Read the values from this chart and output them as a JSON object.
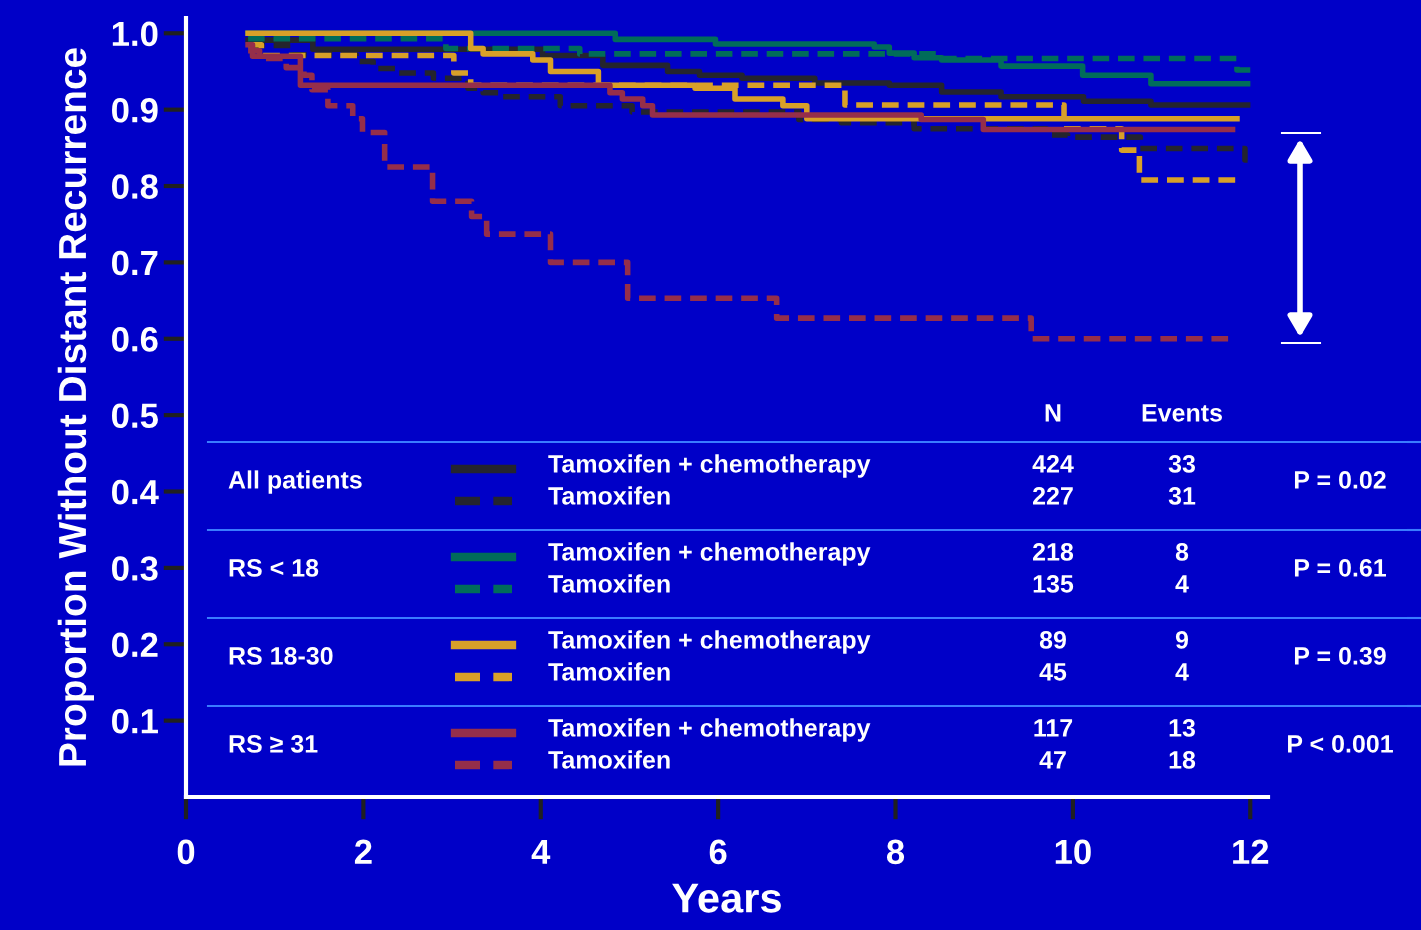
{
  "chart_data": {
    "type": "step",
    "xlabel": "Years",
    "ylabel": "Proportion Without Distant Recurrence",
    "xlim": [
      0,
      12.2
    ],
    "ylim": [
      0,
      1.02
    ],
    "xticks": [
      0,
      2,
      4,
      6,
      8,
      10,
      12
    ],
    "yticks": [
      {
        "value": 0.1,
        "label": "0.1"
      },
      {
        "value": 0.2,
        "label": "0.2"
      },
      {
        "value": 0.3,
        "label": "0.3"
      },
      {
        "value": 0.4,
        "label": "0.4"
      },
      {
        "value": 0.5,
        "label": "0.5"
      },
      {
        "value": 0.6,
        "label": "0.6"
      },
      {
        "value": 0.7,
        "label": "0.7"
      },
      {
        "value": 0.8,
        "label": "0.8"
      },
      {
        "value": 0.9,
        "label": "0.9"
      },
      {
        "value": 1.0,
        "label": "1.0"
      }
    ],
    "legend": "bottom",
    "series": [
      {
        "name": "Tamoxifen + chemotherapy",
        "color": "#24242e",
        "line_style": "solid",
        "x": [
          0.7,
          1.43,
          4.02,
          4.7,
          5.43,
          5.79,
          6.27,
          7.09,
          7.93,
          8.52,
          9.19,
          10.12,
          10.88,
          11.97
        ],
        "values": [
          0.991,
          0.979,
          0.971,
          0.958,
          0.95,
          0.945,
          0.941,
          0.935,
          0.932,
          0.923,
          0.917,
          0.911,
          0.906,
          0.906
        ]
      },
      {
        "name": "Tamoxifen",
        "color": "#24242e",
        "line_style": "dashed",
        "x": [
          0.7,
          1.2,
          1.92,
          2.11,
          2.4,
          2.79,
          3.18,
          3.35,
          3.57,
          4.22,
          5.03,
          6.91,
          7.39,
          8.21,
          9.7,
          9.94,
          10.76,
          11.94,
          11.97
        ],
        "values": [
          0.984,
          0.972,
          0.963,
          0.954,
          0.948,
          0.941,
          0.928,
          0.922,
          0.917,
          0.905,
          0.897,
          0.887,
          0.883,
          0.875,
          0.867,
          0.864,
          0.849,
          0.834,
          0.834
        ]
      },
      {
        "name": "Tamoxifen + chemotherapy",
        "color": "#006c5a",
        "line_style": "solid",
        "x": [
          0.7,
          4.84,
          5.97,
          7.76,
          7.93,
          8.21,
          8.52,
          9.19,
          10.11,
          10.88,
          11.97
        ],
        "values": [
          1.0,
          0.992,
          0.986,
          0.982,
          0.974,
          0.968,
          0.965,
          0.957,
          0.945,
          0.934,
          0.934
        ]
      },
      {
        "name": "Tamoxifen",
        "color": "#006c5a",
        "line_style": "dashed",
        "x": [
          0.7,
          2.93,
          4.44,
          8.52,
          11.85,
          12.0
        ],
        "values": [
          0.993,
          0.98,
          0.973,
          0.967,
          0.952,
          0.952
        ]
      },
      {
        "name": "Tamoxifen + chemotherapy",
        "color": "#d8a028",
        "line_style": "solid",
        "x": [
          0.7,
          3.21,
          3.35,
          3.91,
          4.11,
          4.65,
          5.74,
          6.19,
          6.73,
          7.0,
          11.85
        ],
        "values": [
          1.0,
          0.98,
          0.973,
          0.965,
          0.95,
          0.932,
          0.928,
          0.914,
          0.905,
          0.888,
          0.888
        ]
      },
      {
        "name": "Tamoxifen",
        "color": "#d8a028",
        "line_style": "dashed",
        "x": [
          0.7,
          0.85,
          3.02,
          3.21,
          7.43,
          9.9,
          10.55,
          10.75,
          11.83
        ],
        "values": [
          0.985,
          0.971,
          0.948,
          0.932,
          0.906,
          0.875,
          0.847,
          0.808,
          0.808
        ]
      },
      {
        "name": "Tamoxifen + chemotherapy",
        "color": "#952e4a",
        "line_style": "solid",
        "x": [
          0.7,
          0.75,
          1.29,
          4.78,
          4.92,
          5.15,
          5.26,
          8.29,
          8.99,
          11.8
        ],
        "values": [
          0.985,
          0.97,
          0.932,
          0.922,
          0.914,
          0.905,
          0.893,
          0.887,
          0.874,
          0.874
        ]
      },
      {
        "name": "Tamoxifen",
        "color": "#952e4a",
        "line_style": "dashed",
        "x": [
          0.7,
          0.83,
          1.13,
          1.33,
          1.42,
          1.6,
          1.88,
          1.99,
          2.24,
          2.78,
          3.22,
          3.39,
          4.11,
          4.98,
          6.66,
          9.53,
          11.75
        ],
        "values": [
          0.977,
          0.967,
          0.955,
          0.945,
          0.926,
          0.905,
          0.888,
          0.87,
          0.825,
          0.78,
          0.76,
          0.737,
          0.7,
          0.653,
          0.627,
          0.6,
          0.6
        ]
      }
    ],
    "annotations": [
      "N",
      "Events",
      "All patients",
      "424",
      "33",
      "227",
      "31",
      "P = 0.02",
      "RS < 18",
      "218",
      "8",
      "135",
      "4",
      "P = 0.61",
      "RS 18-30",
      "89",
      "9",
      "45",
      "4",
      "P = 0.39",
      "RS ≥ 31",
      "117",
      "13",
      "47",
      "18",
      "P < 0.001"
    ]
  }
}
